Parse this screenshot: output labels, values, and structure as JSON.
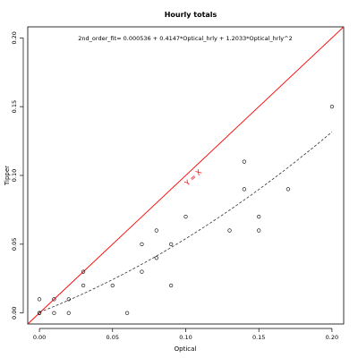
{
  "chart_data": {
    "type": "scatter",
    "title": "Hourly totals",
    "xlabel": "Optical",
    "ylabel": "Tipper",
    "xlim": [
      -0.008,
      0.208
    ],
    "ylim": [
      -0.008,
      0.208
    ],
    "x_ticks": [
      0.0,
      0.05,
      0.1,
      0.15,
      0.2
    ],
    "x_tick_labels": [
      "0.00",
      "0.05",
      "0.10",
      "0.15",
      "0.20"
    ],
    "y_ticks": [
      0.0,
      0.05,
      0.1,
      0.15,
      0.2
    ],
    "y_tick_labels": [
      "0.00",
      "0.05",
      "0.10",
      "0.15",
      "0.20"
    ],
    "grid": false,
    "annotation": "2nd_order_fit= 0.000536 + 0.4147*Optical_hrly + 1.2033*Optical_hrly^2",
    "identity_line_label": "Y = X",
    "identity_line_color": "#ff0000",
    "fit_line_color": "#333333",
    "point_color": "#000000",
    "fit": {
      "intercept": 0.000536,
      "linear": 0.4147,
      "quadratic": 1.2033,
      "x_range": [
        0.0,
        0.2
      ]
    },
    "points": [
      {
        "x": 0.0,
        "y": 0.0
      },
      {
        "x": 0.0,
        "y": 0.01
      },
      {
        "x": 0.0,
        "y": 0.0
      },
      {
        "x": 0.01,
        "y": 0.0
      },
      {
        "x": 0.01,
        "y": 0.01
      },
      {
        "x": 0.02,
        "y": 0.0
      },
      {
        "x": 0.02,
        "y": 0.01
      },
      {
        "x": 0.03,
        "y": 0.02
      },
      {
        "x": 0.03,
        "y": 0.03
      },
      {
        "x": 0.05,
        "y": 0.02
      },
      {
        "x": 0.06,
        "y": 0.0
      },
      {
        "x": 0.07,
        "y": 0.03
      },
      {
        "x": 0.07,
        "y": 0.05
      },
      {
        "x": 0.08,
        "y": 0.04
      },
      {
        "x": 0.08,
        "y": 0.06
      },
      {
        "x": 0.09,
        "y": 0.02
      },
      {
        "x": 0.09,
        "y": 0.05
      },
      {
        "x": 0.1,
        "y": 0.07
      },
      {
        "x": 0.13,
        "y": 0.06
      },
      {
        "x": 0.14,
        "y": 0.09
      },
      {
        "x": 0.14,
        "y": 0.11
      },
      {
        "x": 0.15,
        "y": 0.06
      },
      {
        "x": 0.15,
        "y": 0.07
      },
      {
        "x": 0.17,
        "y": 0.09
      },
      {
        "x": 0.2,
        "y": 0.15
      }
    ]
  }
}
